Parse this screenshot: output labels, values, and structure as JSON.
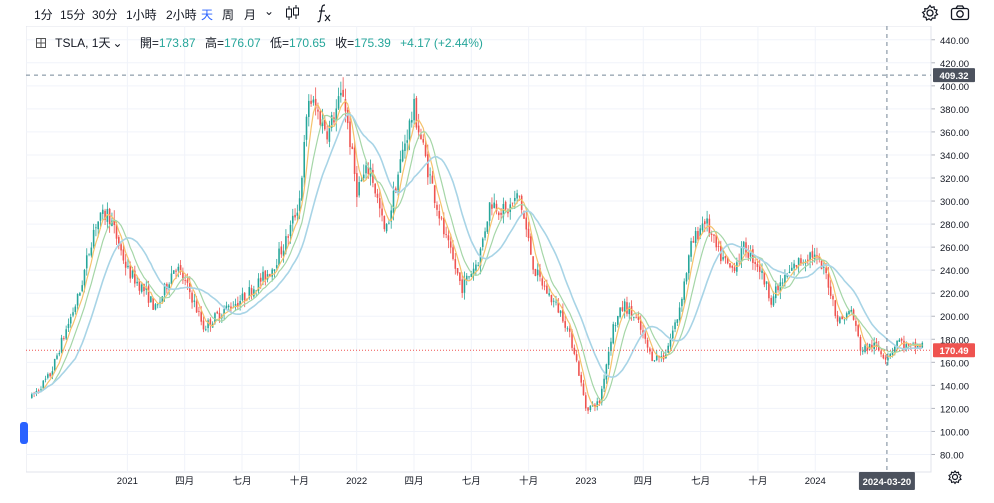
{
  "toolbar": {
    "intervals": [
      "1分",
      "15分",
      "30分",
      "1小時",
      "2小時",
      "天",
      "周",
      "月"
    ],
    "active_interval": "天",
    "dropdown_glyph": "⌄",
    "icons": [
      "candles-icon",
      "fx-icon",
      "settings-gear-icon",
      "camera-icon"
    ]
  },
  "legend": {
    "symbol": "TSLA, 1天",
    "open_label": "開=",
    "open": "173.87",
    "high_label": "高=",
    "high": "176.07",
    "low_label": "低=",
    "low": "170.65",
    "close_label": "收=",
    "close": "175.39",
    "change": "+4.17 (+2.44%)"
  },
  "colors": {
    "up": "#26a69a",
    "down": "#ef5350",
    "ma_fast": "#f5c26b",
    "ma_mid": "#a5d6a7",
    "ma_slow": "#a8d4e6",
    "price_line": "#ef5350",
    "crosshair": "#758696"
  },
  "crosshair": {
    "date": "2024-03-20",
    "price": "409.32"
  },
  "last_price": "170.49",
  "chart_data": {
    "type": "candlestick",
    "title": "TSLA, 1天",
    "ylim": [
      70,
      445
    ],
    "y_ticks": [
      "440.00",
      "420.00",
      "400.00",
      "380.00",
      "360.00",
      "340.00",
      "320.00",
      "300.00",
      "280.00",
      "260.00",
      "240.00",
      "220.00",
      "200.00",
      "180.00",
      "160.00",
      "140.00",
      "120.00",
      "100.00",
      "80.00"
    ],
    "x_ticks": [
      "2021",
      "四月",
      "七月",
      "十月",
      "2022",
      "四月",
      "七月",
      "十月",
      "2023",
      "四月",
      "七月",
      "十月",
      "2024"
    ],
    "x_tick_months": [
      5,
      8,
      11,
      14,
      17,
      20,
      23,
      26,
      29,
      32,
      35,
      38,
      41
    ],
    "anchors": [
      [
        0,
        130
      ],
      [
        1,
        150
      ],
      [
        1.5,
        175
      ],
      [
        2.5,
        220
      ],
      [
        3.3,
        280
      ],
      [
        4,
        290
      ],
      [
        5,
        240
      ],
      [
        6,
        220
      ],
      [
        6.5,
        205
      ],
      [
        7.5,
        245
      ],
      [
        8.3,
        220
      ],
      [
        9,
        190
      ],
      [
        10,
        205
      ],
      [
        11,
        215
      ],
      [
        12.5,
        240
      ],
      [
        13.3,
        265
      ],
      [
        14,
        300
      ],
      [
        14.5,
        390
      ],
      [
        15.5,
        360
      ],
      [
        16.3,
        395
      ],
      [
        17,
        310
      ],
      [
        17.7,
        330
      ],
      [
        18.5,
        270
      ],
      [
        19.5,
        350
      ],
      [
        20,
        380
      ],
      [
        20.7,
        330
      ],
      [
        21.6,
        270
      ],
      [
        22.5,
        225
      ],
      [
        23.4,
        250
      ],
      [
        24,
        300
      ],
      [
        24.8,
        290
      ],
      [
        25.5,
        305
      ],
      [
        26.3,
        240
      ],
      [
        27,
        220
      ],
      [
        27.8,
        200
      ],
      [
        28.4,
        170
      ],
      [
        29,
        120
      ],
      [
        29.7,
        125
      ],
      [
        30.4,
        190
      ],
      [
        31,
        210
      ],
      [
        31.7,
        195
      ],
      [
        32.4,
        165
      ],
      [
        33.1,
        165
      ],
      [
        33.8,
        200
      ],
      [
        34.5,
        260
      ],
      [
        35.2,
        285
      ],
      [
        35.9,
        255
      ],
      [
        36.6,
        240
      ],
      [
        37.3,
        260
      ],
      [
        38,
        245
      ],
      [
        38.7,
        215
      ],
      [
        39.3,
        230
      ],
      [
        40,
        245
      ],
      [
        40.8,
        255
      ],
      [
        41.6,
        235
      ],
      [
        42.2,
        195
      ],
      [
        42.9,
        205
      ],
      [
        43.4,
        170
      ],
      [
        44,
        175
      ],
      [
        44.7,
        165
      ],
      [
        45,
        170
      ],
      [
        45.3,
        180
      ],
      [
        45.9,
        172
      ],
      [
        46.6,
        175
      ]
    ],
    "ma_periods": [
      5,
      10,
      20
    ],
    "last_price": 170.49,
    "crosshair_price": 409.32,
    "crosshair_date": "2024-03-20"
  }
}
